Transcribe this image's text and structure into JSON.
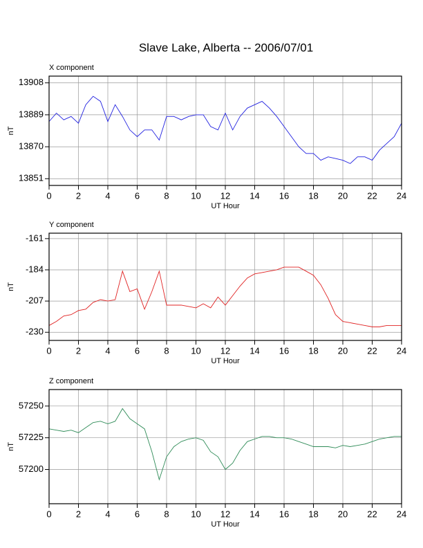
{
  "title": "Slave Lake, Alberta -- 2006/07/01",
  "chart_data": [
    {
      "type": "line",
      "title": "X component",
      "ylabel": "nT",
      "xlabel": "UT Hour",
      "color": "#2020e0",
      "x": [
        0,
        0.5,
        1,
        1.5,
        2,
        2.5,
        3,
        3.5,
        4,
        4.5,
        5,
        5.5,
        6,
        6.5,
        7,
        7.5,
        8,
        8.5,
        9,
        9.5,
        10,
        10.5,
        11,
        11.5,
        12,
        12.5,
        13,
        13.5,
        14,
        14.5,
        15,
        15.5,
        16,
        16.5,
        17,
        17.5,
        18,
        18.5,
        19,
        19.5,
        20,
        20.5,
        21,
        21.5,
        22,
        22.5,
        23,
        23.5,
        24
      ],
      "values": [
        13885,
        13890,
        13886,
        13888,
        13884,
        13895,
        13900,
        13897,
        13885,
        13895,
        13888,
        13880,
        13876,
        13880,
        13880,
        13874,
        13888,
        13888,
        13886,
        13888,
        13889,
        13889,
        13882,
        13880,
        13890,
        13880,
        13888,
        13893,
        13895,
        13897,
        13893,
        13888,
        13882,
        13876,
        13870,
        13866,
        13866,
        13862,
        13864,
        13863,
        13862,
        13860,
        13864,
        13864,
        13862,
        13868,
        13872,
        13876,
        13884
      ],
      "xlim": [
        0,
        24
      ],
      "xticks": [
        0,
        2,
        4,
        6,
        8,
        10,
        12,
        14,
        16,
        18,
        20,
        22,
        24
      ],
      "ylim": [
        13847,
        13912
      ],
      "yticks": [
        13851,
        13870,
        13889,
        13908
      ],
      "grid": true
    },
    {
      "type": "line",
      "title": "Y component",
      "ylabel": "nT",
      "xlabel": "UT Hour",
      "color": "#e02020",
      "x": [
        0,
        0.5,
        1,
        1.5,
        2,
        2.5,
        3,
        3.5,
        4,
        4.5,
        5,
        5.5,
        6,
        6.5,
        7,
        7.5,
        8,
        8.5,
        9,
        9.5,
        10,
        10.5,
        11,
        11.5,
        12,
        12.5,
        13,
        13.5,
        14,
        14.5,
        15,
        15.5,
        16,
        16.5,
        17,
        17.5,
        18,
        18.5,
        19,
        19.5,
        20,
        20.5,
        21,
        21.5,
        22,
        22.5,
        23,
        23.5,
        24
      ],
      "values": [
        -225,
        -222,
        -218,
        -217,
        -214,
        -213,
        -208,
        -206,
        -207,
        -206,
        -185,
        -200,
        -198,
        -213,
        -200,
        -185,
        -210,
        -210,
        -210,
        -211,
        -212,
        -209,
        -212,
        -204,
        -210,
        -203,
        -196,
        -190,
        -187,
        -186,
        -185,
        -184,
        -182,
        -182,
        -182,
        -185,
        -188,
        -195,
        -205,
        -217,
        -222,
        -223,
        -224,
        -225,
        -226,
        -226,
        -225,
        -225,
        -225
      ],
      "xlim": [
        0,
        24
      ],
      "xticks": [
        0,
        2,
        4,
        6,
        8,
        10,
        12,
        14,
        16,
        18,
        20,
        22,
        24
      ],
      "ylim": [
        -236,
        -157
      ],
      "yticks": [
        -230,
        -207,
        -184,
        -161
      ],
      "grid": true
    },
    {
      "type": "line",
      "title": "Z component",
      "ylabel": "nT",
      "xlabel": "UT Hour",
      "color": "#2e8b57",
      "x": [
        0,
        0.5,
        1,
        1.5,
        2,
        2.5,
        3,
        3.5,
        4,
        4.5,
        5,
        5.5,
        6,
        6.5,
        7,
        7.5,
        8,
        8.5,
        9,
        9.5,
        10,
        10.5,
        11,
        11.5,
        12,
        12.5,
        13,
        13.5,
        14,
        14.5,
        15,
        15.5,
        16,
        16.5,
        17,
        17.5,
        18,
        18.5,
        19,
        19.5,
        20,
        20.5,
        21,
        21.5,
        22,
        22.5,
        23,
        23.5,
        24
      ],
      "values": [
        57232,
        57231,
        57230,
        57231,
        57229,
        57233,
        57237,
        57238,
        57236,
        57238,
        57248,
        57240,
        57236,
        57232,
        57214,
        57192,
        57210,
        57218,
        57222,
        57224,
        57225,
        57223,
        57214,
        57210,
        57200,
        57205,
        57215,
        57222,
        57224,
        57226,
        57226,
        57225,
        57225,
        57224,
        57222,
        57220,
        57218,
        57218,
        57218,
        57217,
        57219,
        57218,
        57219,
        57220,
        57222,
        57224,
        57225,
        57226,
        57226
      ],
      "xlim": [
        0,
        24
      ],
      "xticks": [
        0,
        2,
        4,
        6,
        8,
        10,
        12,
        14,
        16,
        18,
        20,
        22,
        24
      ],
      "ylim": [
        57173,
        57263
      ],
      "yticks": [
        57200,
        57225,
        57250
      ],
      "grid": true
    }
  ]
}
